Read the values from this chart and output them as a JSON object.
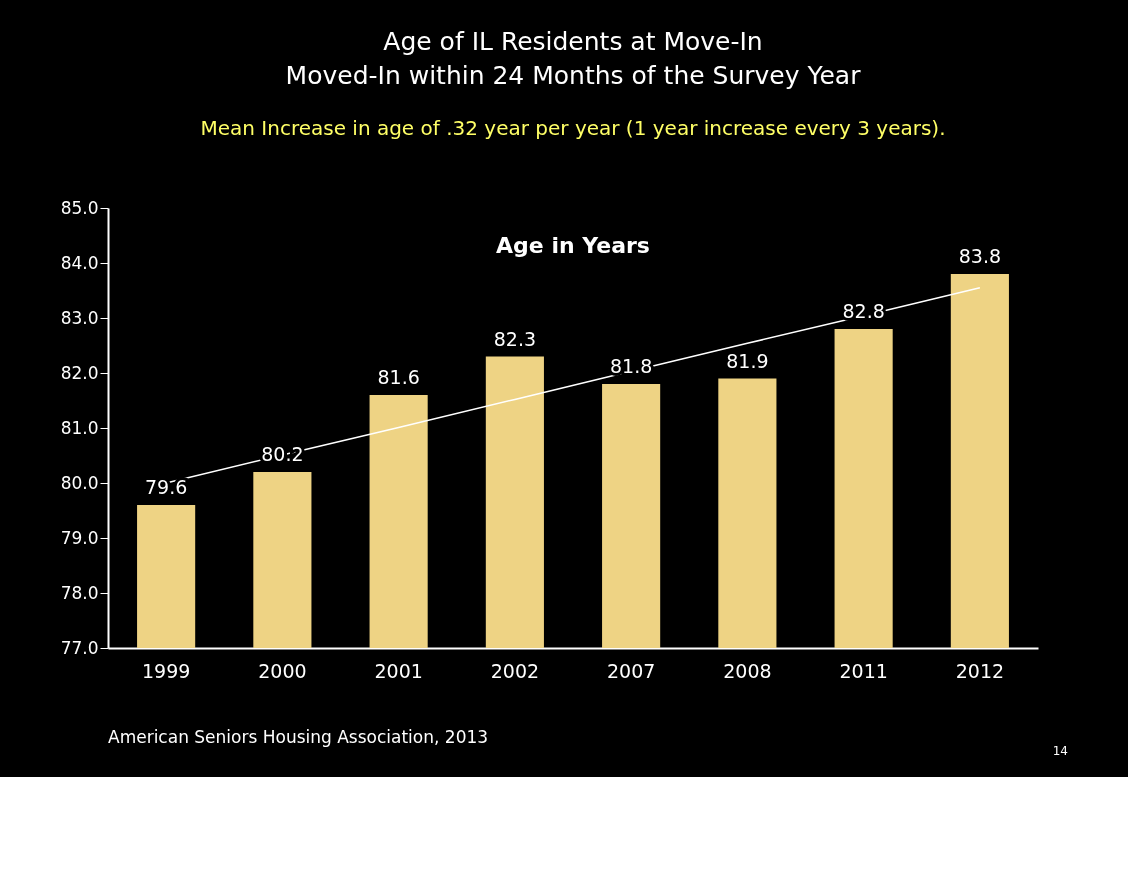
{
  "chart_data": {
    "type": "bar",
    "title": [
      "Age of IL Residents at Move-In",
      "Moved-In within 24 Months of the Survey Year"
    ],
    "subtitle": "Mean Increase in age of .32 year per year (1 year increase every  3 years).",
    "categories": [
      "1999",
      "2000",
      "2001",
      "2002",
      "2007",
      "2008",
      "2011",
      "2012"
    ],
    "series": [
      {
        "name": "Age in Years",
        "color": "#eed384",
        "values": [
          79.6,
          80.2,
          81.6,
          82.3,
          81.8,
          81.9,
          82.8,
          83.8
        ],
        "value_labels": [
          "79.6",
          "80.2",
          "81.6",
          "82.3",
          "81.8",
          "81.9",
          "82.8",
          "83.8"
        ]
      },
      {
        "type": "line",
        "color": "#ffffff",
        "values": [
          80.0,
          80.51,
          81.01,
          81.52,
          82.03,
          82.54,
          83.04,
          83.55
        ]
      }
    ],
    "ylim": [
      77,
      85
    ],
    "yticks": [
      {
        "value": 77,
        "label": "77.0"
      },
      {
        "value": 78,
        "label": "78.0"
      },
      {
        "value": 79,
        "label": "79.0"
      },
      {
        "value": 80,
        "label": "80.0"
      },
      {
        "value": 81,
        "label": "81.0"
      },
      {
        "value": 82,
        "label": "82.0"
      },
      {
        "value": 83,
        "label": "83.0"
      },
      {
        "value": 84,
        "label": "84.0"
      },
      {
        "value": 85,
        "label": "85.0"
      }
    ],
    "grid": false,
    "annotations": [
      "American Seniors Housing Association, 2013",
      "14"
    ]
  }
}
